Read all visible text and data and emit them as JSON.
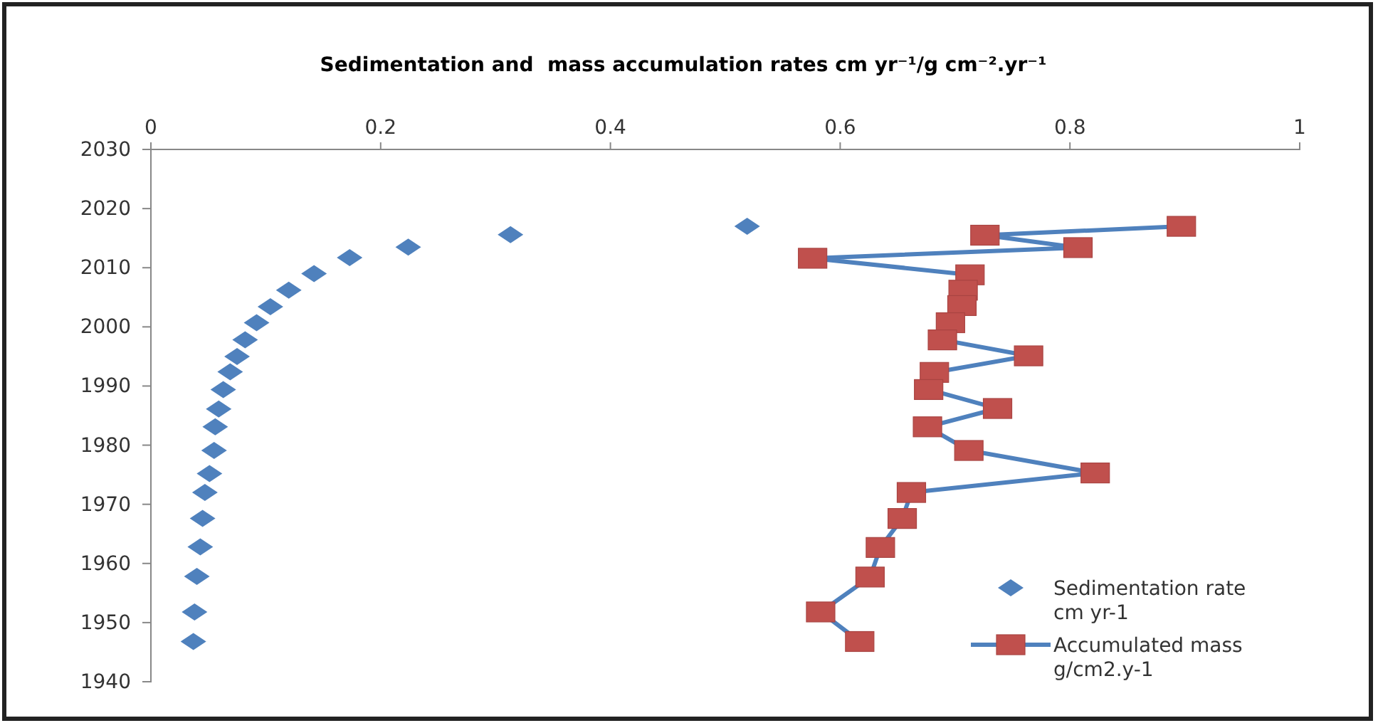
{
  "chart_data": {
    "type": "scatter",
    "title": "Sedimentation and  mass accumulation rates cm yr⁻¹/g cm⁻².yr⁻¹",
    "xlim": [
      0,
      1
    ],
    "xticks": [
      0,
      0.2,
      0.4,
      0.6,
      0.8,
      1
    ],
    "ylim": [
      1940,
      2030
    ],
    "yticks": [
      1940,
      1950,
      1960,
      1970,
      1980,
      1990,
      2000,
      2010,
      2020,
      2030
    ],
    "legend": "bottom right",
    "grid": false,
    "series": [
      {
        "name": "Sedimentation rate cm yr-1",
        "marker": "diamond",
        "color": "#4f81bd",
        "x": [
          0.519,
          0.313,
          0.224,
          0.173,
          0.142,
          0.12,
          0.104,
          0.092,
          0.082,
          0.075,
          0.069,
          0.063,
          0.059,
          0.056,
          0.055,
          0.051,
          0.047,
          0.045,
          0.043,
          0.04,
          0.038,
          0.037
        ],
        "values": [
          2017,
          2015.6,
          2013.5,
          2011.7,
          2009,
          2006.2,
          2003.4,
          2000.7,
          1997.8,
          1995,
          1992.4,
          1989.4,
          1986.1,
          1983.1,
          1979.1,
          1975.2,
          1972,
          1967.6,
          1962.8,
          1957.8,
          1951.8,
          1946.8
        ]
      },
      {
        "name": "Accumulated mass g/cm2.y-1",
        "type": "line",
        "marker": "square",
        "line_style": "solid",
        "color": "#4f81bd",
        "colors": [
          "#c0504d",
          "#c0504d",
          "#c0504d",
          "#c0504d",
          "#c0504d",
          "#c0504d",
          "#c0504d",
          "#c0504d",
          "#c0504d",
          "#c0504d",
          "#c0504d",
          "#c0504d",
          "#c0504d",
          "#c0504d",
          "#c0504d",
          "#c0504d",
          "#c0504d",
          "#c0504d",
          "#c0504d",
          "#c0504d",
          "#c0504d",
          "#c0504d"
        ],
        "x": [
          0.897,
          0.726,
          0.807,
          0.576,
          0.713,
          0.707,
          0.706,
          0.696,
          0.689,
          0.764,
          0.682,
          0.677,
          0.737,
          0.676,
          0.712,
          0.822,
          0.662,
          0.654,
          0.635,
          0.626,
          0.583,
          0.617
        ],
        "values": [
          2017,
          2015.5,
          2013.4,
          2011.6,
          2008.8,
          2006.2,
          2003.6,
          2000.7,
          1997.8,
          1995.1,
          1992.3,
          1989.4,
          1986.2,
          1983.1,
          1979.1,
          1975.3,
          1972,
          1967.6,
          1962.7,
          1957.7,
          1951.8,
          1946.8
        ]
      }
    ]
  }
}
